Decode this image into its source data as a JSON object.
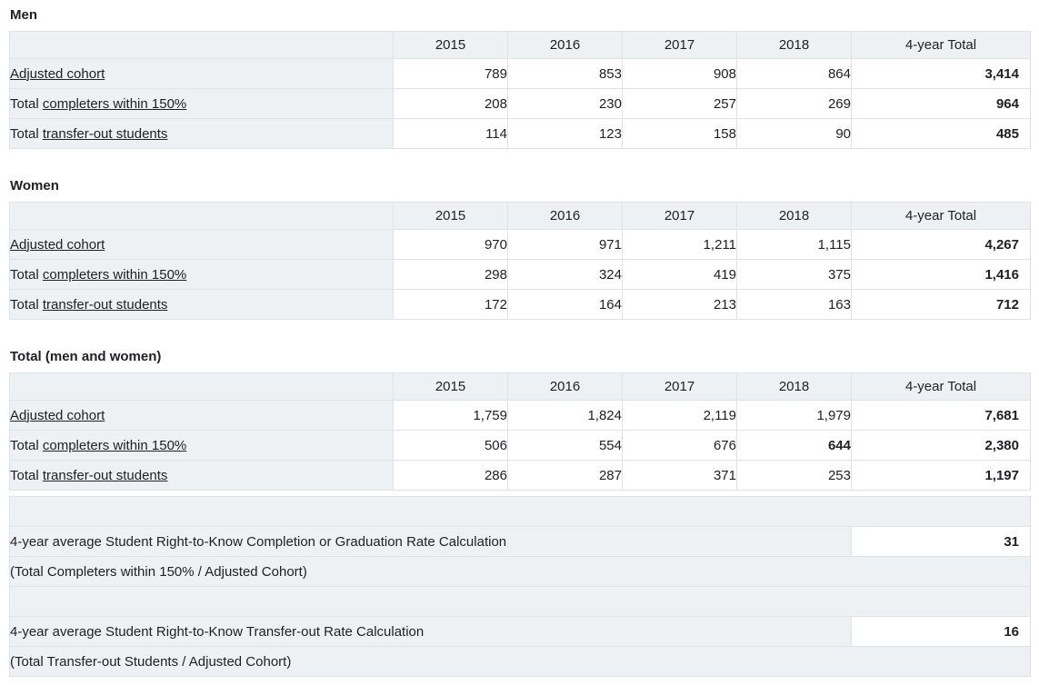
{
  "theme": {
    "row_bg": "#eef1f4",
    "border": "#dfe3e6",
    "text": "#202124",
    "value_bg": "#ffffff"
  },
  "columns": [
    "2015",
    "2016",
    "2017",
    "2018",
    "4-year Total"
  ],
  "tables": [
    {
      "title": "Men",
      "rows": [
        {
          "prefix": "",
          "link": "Adjusted cohort",
          "values": [
            "789",
            "853",
            "908",
            "864",
            "3,414"
          ]
        },
        {
          "prefix": "Total ",
          "link": "completers within 150%",
          "values": [
            "208",
            "230",
            "257",
            "269",
            "964"
          ]
        },
        {
          "prefix": "Total ",
          "link": "transfer-out students",
          "values": [
            "114",
            "123",
            "158",
            "90",
            "485"
          ]
        }
      ]
    },
    {
      "title": "Women",
      "rows": [
        {
          "prefix": "",
          "link": "Adjusted cohort",
          "values": [
            "970",
            "971",
            "1,211",
            "1,115",
            "4,267"
          ]
        },
        {
          "prefix": "Total ",
          "link": "completers within 150%",
          "values": [
            "298",
            "324",
            "419",
            "375",
            "1,416"
          ]
        },
        {
          "prefix": "Total ",
          "link": "transfer-out students",
          "values": [
            "172",
            "164",
            "213",
            "163",
            "712"
          ]
        }
      ]
    },
    {
      "title": "Total (men and women)",
      "rows": [
        {
          "prefix": "",
          "link": "Adjusted cohort",
          "values": [
            "1,759",
            "1,824",
            "2,119",
            "1,979",
            "7,681"
          ]
        },
        {
          "prefix": "Total ",
          "link": "completers within 150%",
          "values": [
            "506",
            "554",
            "676",
            "644",
            "2,380"
          ]
        },
        {
          "prefix": "Total ",
          "link": "transfer-out students",
          "values": [
            "286",
            "287",
            "371",
            "253",
            "1,197"
          ]
        }
      ]
    }
  ],
  "summary": {
    "completion_label": "4-year average Student Right-to-Know Completion or Graduation Rate Calculation",
    "completion_formula": "(Total Completers within 150% / Adjusted Cohort)",
    "completion_value": "31",
    "transfer_label": "4-year average Student Right-to-Know Transfer-out Rate Calculation",
    "transfer_formula": "(Total Transfer-out Students / Adjusted Cohort)",
    "transfer_value": "16"
  }
}
